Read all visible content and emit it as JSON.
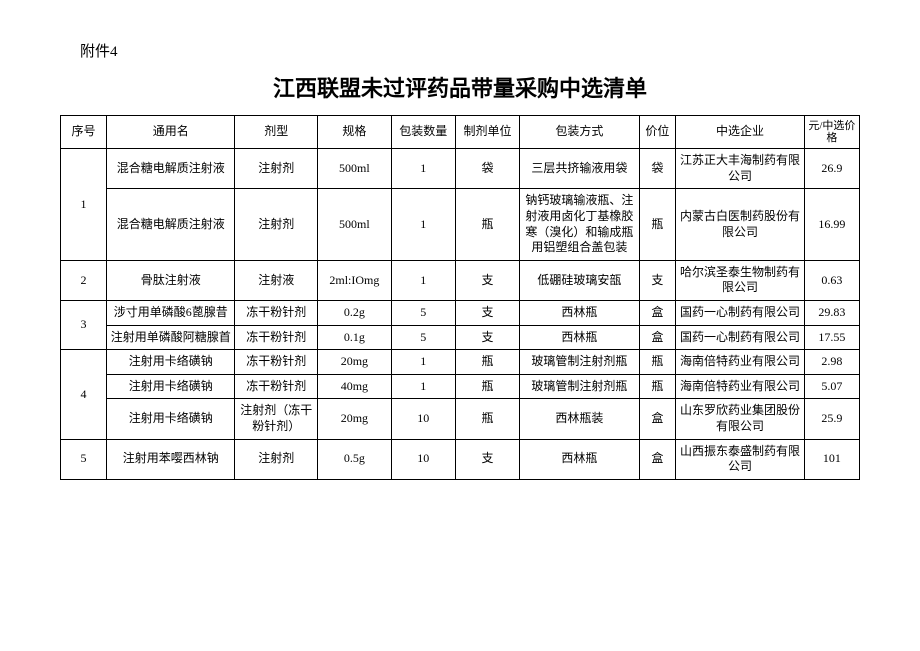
{
  "appendix": "附件4",
  "title": "江西联盟未过评药品带量采购中选清单",
  "columns": [
    "序号",
    "通用名",
    "剂型",
    "规格",
    "包装数量",
    "制剂单位",
    "包装方式",
    "价位",
    "中选企业",
    "元/中选价格"
  ],
  "groups": [
    {
      "seq": "1",
      "rows": [
        {
          "name": "混合糖电解质注射液",
          "form": "注射剂",
          "spec": "500ml",
          "qty": "1",
          "unit": "袋",
          "pack": "三层共挤输液用袋",
          "price_unit": "袋",
          "company": "江苏正大丰海制药有限公司",
          "price": "26.9"
        },
        {
          "name": "混合糖电解质注射液",
          "form": "注射剂",
          "spec": "500ml",
          "qty": "1",
          "unit": "瓶",
          "pack": "钠钙玻璃输液瓶、注射液用卤化丁基橡胶寒（溴化）和输成瓶用铝塑组合盖包装",
          "price_unit": "瓶",
          "company": "内蒙古白医制药股份有限公司",
          "price": "16.99"
        }
      ]
    },
    {
      "seq": "2",
      "rows": [
        {
          "name": "骨肽注射液",
          "form": "注射液",
          "spec": "2ml:IOmg",
          "qty": "1",
          "unit": "支",
          "pack": "低硼硅玻璃安瓿",
          "price_unit": "支",
          "company": "哈尔滨圣泰生物制药有限公司",
          "price": "0.63"
        }
      ]
    },
    {
      "seq": "3",
      "rows": [
        {
          "name": "涉寸用单磷酸6蓖腺昔",
          "form": "冻干粉针剂",
          "spec": "0.2g",
          "qty": "5",
          "unit": "支",
          "pack": "西林瓶",
          "price_unit": "盒",
          "company": "国药一心制药有限公司",
          "price": "29.83"
        },
        {
          "name": "注射用单磷酸阿糖腺首",
          "form": "冻干粉针剂",
          "spec": "0.1g",
          "qty": "5",
          "unit": "支",
          "pack": "西林瓶",
          "price_unit": "盒",
          "company": "国药一心制药有限公司",
          "price": "17.55"
        }
      ]
    },
    {
      "seq": "4",
      "rows": [
        {
          "name": "注射用卡络磺钠",
          "form": "冻干粉针剂",
          "spec": "20mg",
          "qty": "1",
          "unit": "瓶",
          "pack": "玻璃管制注射剂瓶",
          "price_unit": "瓶",
          "company": "海南倍特药业有限公司",
          "price": "2.98"
        },
        {
          "name": "注射用卡络磺钠",
          "form": "冻干粉针剂",
          "spec": "40mg",
          "qty": "1",
          "unit": "瓶",
          "pack": "玻璃管制注射剂瓶",
          "price_unit": "瓶",
          "company": "海南倍特药业有限公司",
          "price": "5.07"
        },
        {
          "name": "注射用卡络磺钠",
          "form": "注射剂（冻干粉针剂）",
          "spec": "20mg",
          "qty": "10",
          "unit": "瓶",
          "pack": "西林瓶装",
          "price_unit": "盒",
          "company": "山东罗欣药业集团股份有限公司",
          "price": "25.9"
        }
      ]
    },
    {
      "seq": "5",
      "rows": [
        {
          "name": "注射用苯嘤西林钠",
          "form": "注射剂",
          "spec": "0.5g",
          "qty": "10",
          "unit": "支",
          "pack": "西林瓶",
          "price_unit": "盒",
          "company": "山西振东泰盛制药有限公司",
          "price": "101"
        }
      ]
    }
  ]
}
